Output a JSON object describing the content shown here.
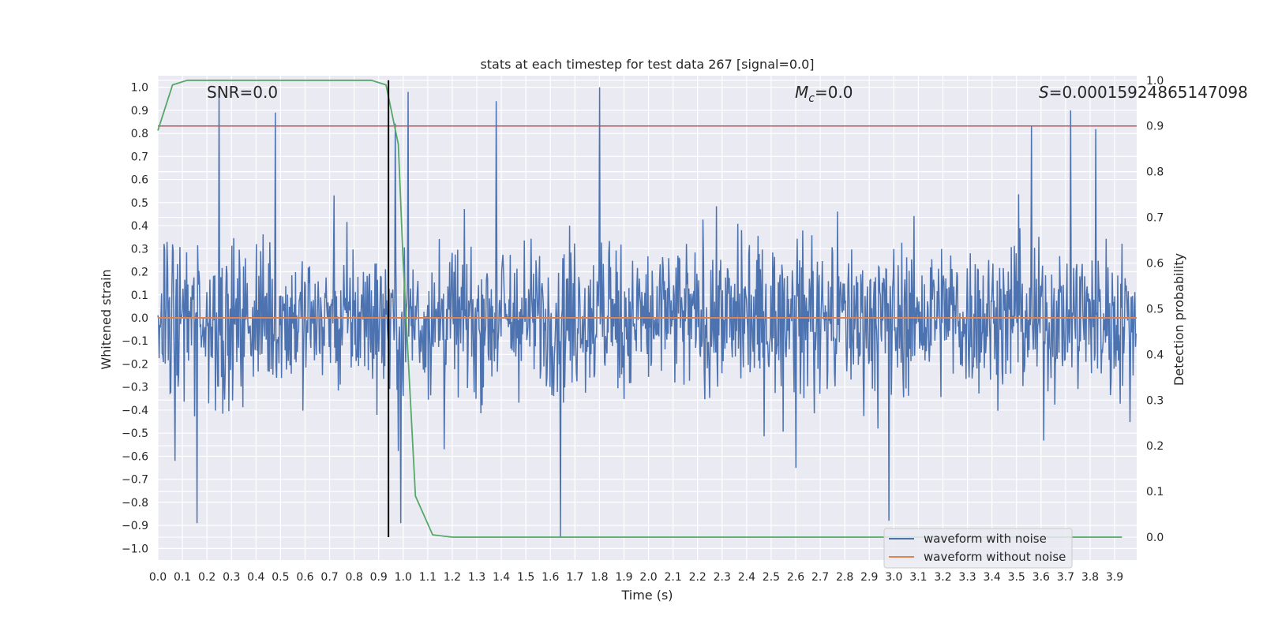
{
  "chart_data": {
    "type": "line",
    "title": "stats at each timestep for test data 267 [signal=0.0]",
    "xlabel": "Time (s)",
    "ylabel": "Whitened strain",
    "y2label": "Detection probability",
    "xlim": [
      0.0,
      3.99
    ],
    "ylim": [
      -1.05,
      1.05
    ],
    "y2lim": [
      -0.05,
      1.01
    ],
    "xticks": [
      0.0,
      0.1,
      0.2,
      0.3,
      0.4,
      0.5,
      0.6,
      0.7,
      0.8,
      0.9,
      1.0,
      1.1,
      1.2,
      1.3,
      1.4,
      1.5,
      1.6,
      1.7,
      1.8,
      1.9,
      2.0,
      2.1,
      2.2,
      2.3,
      2.4,
      2.5,
      2.6,
      2.7,
      2.8,
      2.9,
      3.0,
      3.1,
      3.2,
      3.3,
      3.4,
      3.5,
      3.6,
      3.7,
      3.8,
      3.9
    ],
    "yticks": [
      1.0,
      0.9,
      0.8,
      0.7,
      0.6,
      0.5,
      0.4,
      0.3,
      0.2,
      0.1,
      0.0,
      -0.1,
      -0.2,
      -0.3,
      -0.4,
      -0.5,
      -0.6,
      -0.7,
      -0.8,
      -0.9,
      -1.0
    ],
    "y2ticks": [
      1.0,
      0.9,
      0.8,
      0.7,
      0.6,
      0.5,
      0.4,
      0.3,
      0.2,
      0.1,
      0.0
    ],
    "annotations": {
      "snr": "SNR=0.0",
      "mc_symbol": "M",
      "mc_sub": "c",
      "mc_value": "=0.0",
      "s_symbol": "S",
      "s_value": "=0.00015924865147098"
    },
    "threshold": {
      "axis": "y2",
      "value": 0.9,
      "color": "#c44e52"
    },
    "marker_line": {
      "x": 0.94,
      "color": "#000000"
    },
    "noise_series": {
      "name": "waveform with noise",
      "color": "#4c72b0",
      "samples": 1600,
      "typical_amplitude": 0.35,
      "peak_values": [
        {
          "t": 0.25,
          "v": 1.0
        },
        {
          "t": 1.02,
          "v": 0.98
        },
        {
          "t": 1.8,
          "v": 1.0
        },
        {
          "t": 1.64,
          "v": -0.95
        },
        {
          "t": 0.16,
          "v": -0.89
        },
        {
          "t": 0.48,
          "v": 0.89
        },
        {
          "t": 2.98,
          "v": -0.88
        },
        {
          "t": 3.56,
          "v": 0.83
        },
        {
          "t": 3.72,
          "v": 0.9
        },
        {
          "t": 1.38,
          "v": 0.94
        },
        {
          "t": 0.99,
          "v": -0.89
        },
        {
          "t": 0.07,
          "v": -0.62
        }
      ]
    },
    "clean_series": {
      "name": "waveform without noise",
      "color": "#dd8452",
      "value": 0.0
    },
    "probability_series": {
      "name": "Detection probability",
      "color": "#55a868",
      "x": [
        0.0,
        0.06,
        0.12,
        0.2,
        0.87,
        0.93,
        0.98,
        1.0,
        1.05,
        1.12,
        1.2,
        3.93
      ],
      "y": [
        0.89,
        0.99,
        1.0,
        1.0,
        1.0,
        0.99,
        0.86,
        0.6,
        0.09,
        0.005,
        0.0,
        0.0
      ]
    },
    "legend": {
      "position": "lower-right",
      "entries": [
        {
          "label": "waveform with noise",
          "color": "#4c72b0"
        },
        {
          "label": "waveform without noise",
          "color": "#dd8452"
        }
      ]
    }
  }
}
